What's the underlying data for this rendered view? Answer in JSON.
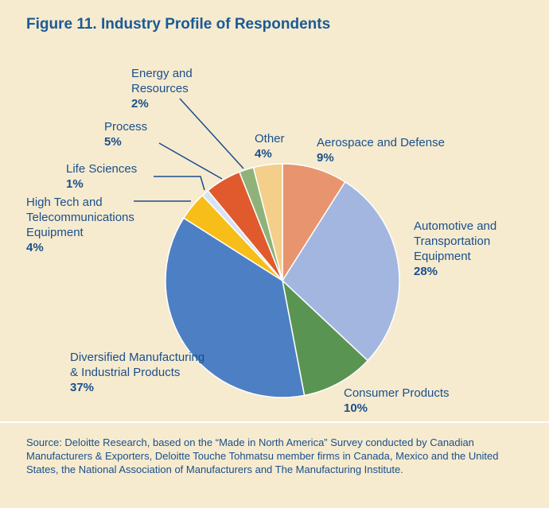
{
  "chart_data": {
    "type": "pie",
    "title": "Figure 11. Industry Profile of Respondents",
    "categories": [
      "Aerospace and Defense",
      "Automotive and Transportation Equipment",
      "Consumer Products",
      "Diversified Manufacturing & Industrial Products",
      "High Tech and Telecommunications Equipment",
      "Life Sciences",
      "Process",
      "Energy and Resources",
      "Other"
    ],
    "values": [
      9,
      28,
      10,
      37,
      4,
      1,
      5,
      2,
      4
    ],
    "value_labels": [
      "9%",
      "28%",
      "10%",
      "37%",
      "4%",
      "1%",
      "5%",
      "2%",
      "4%"
    ],
    "colors": [
      "#e8946e",
      "#a3b6e0",
      "#5a9452",
      "#4d7fc4",
      "#f7be1a",
      "#d7e3f4",
      "#e05a2d",
      "#8fb27a",
      "#f3cf8a"
    ],
    "source": "Source: Deloitte Research, based on the “Made in North America” Survey conducted by Canadian Manufacturers & Exporters, Deloitte Touche Tohmatsu member firms in Canada, Mexico and the United States, the National Association of Manufacturers and The Manufacturing Institute."
  }
}
